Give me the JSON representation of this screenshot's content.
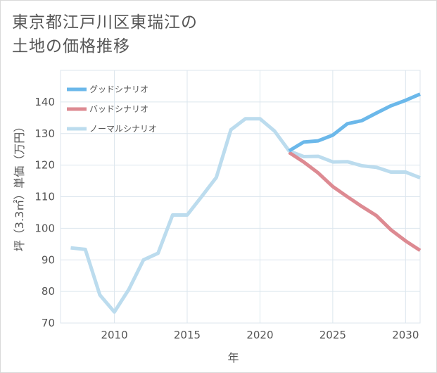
{
  "title": "東京都江戸川区東瑞江の\n土地の価格推移",
  "chart_data": {
    "type": "line",
    "title": "東京都江戸川区東瑞江の土地の価格推移",
    "xlabel": "年",
    "ylabel": "坪（3.3㎡）単価（万円）",
    "xlim": [
      2006.3,
      2031
    ],
    "ylim": [
      70,
      150
    ],
    "x_ticks": [
      2010,
      2015,
      2020,
      2025,
      2030
    ],
    "y_ticks": [
      70,
      80,
      90,
      100,
      110,
      120,
      130,
      140
    ],
    "grid": true,
    "legend_position": "top-left",
    "series": [
      {
        "name": "グッドシナリオ",
        "color": "#6bb8ea",
        "x": [
          2022,
          2023,
          2024,
          2025,
          2026,
          2027,
          2028,
          2029,
          2030,
          2031
        ],
        "y": [
          124.5,
          127.3,
          127.7,
          129.5,
          133.1,
          134.1,
          136.5,
          138.8,
          140.5,
          142.5
        ]
      },
      {
        "name": "バッドシナリオ",
        "color": "#dd8a92",
        "x": [
          2022,
          2023,
          2024,
          2025,
          2026,
          2027,
          2028,
          2029,
          2030,
          2031
        ],
        "y": [
          124.0,
          121.0,
          117.5,
          113.2,
          110.0,
          106.9,
          104.0,
          99.5,
          96.0,
          93.0
        ]
      },
      {
        "name": "ノーマルシナリオ",
        "color": "#bcdcee",
        "x": [
          2007,
          2008,
          2009,
          2010,
          2011,
          2012,
          2013,
          2014,
          2015,
          2016,
          2017,
          2018,
          2019,
          2020,
          2021,
          2022,
          2023,
          2024,
          2025,
          2026,
          2027,
          2028,
          2029,
          2030,
          2031
        ],
        "y": [
          93.8,
          93.3,
          78.9,
          73.5,
          80.7,
          90.0,
          92.1,
          104.2,
          104.2,
          110.1,
          116.1,
          131.2,
          134.7,
          134.7,
          130.8,
          124.5,
          122.7,
          122.8,
          121.0,
          121.1,
          119.8,
          119.3,
          117.8,
          117.8,
          116.0
        ]
      }
    ]
  }
}
